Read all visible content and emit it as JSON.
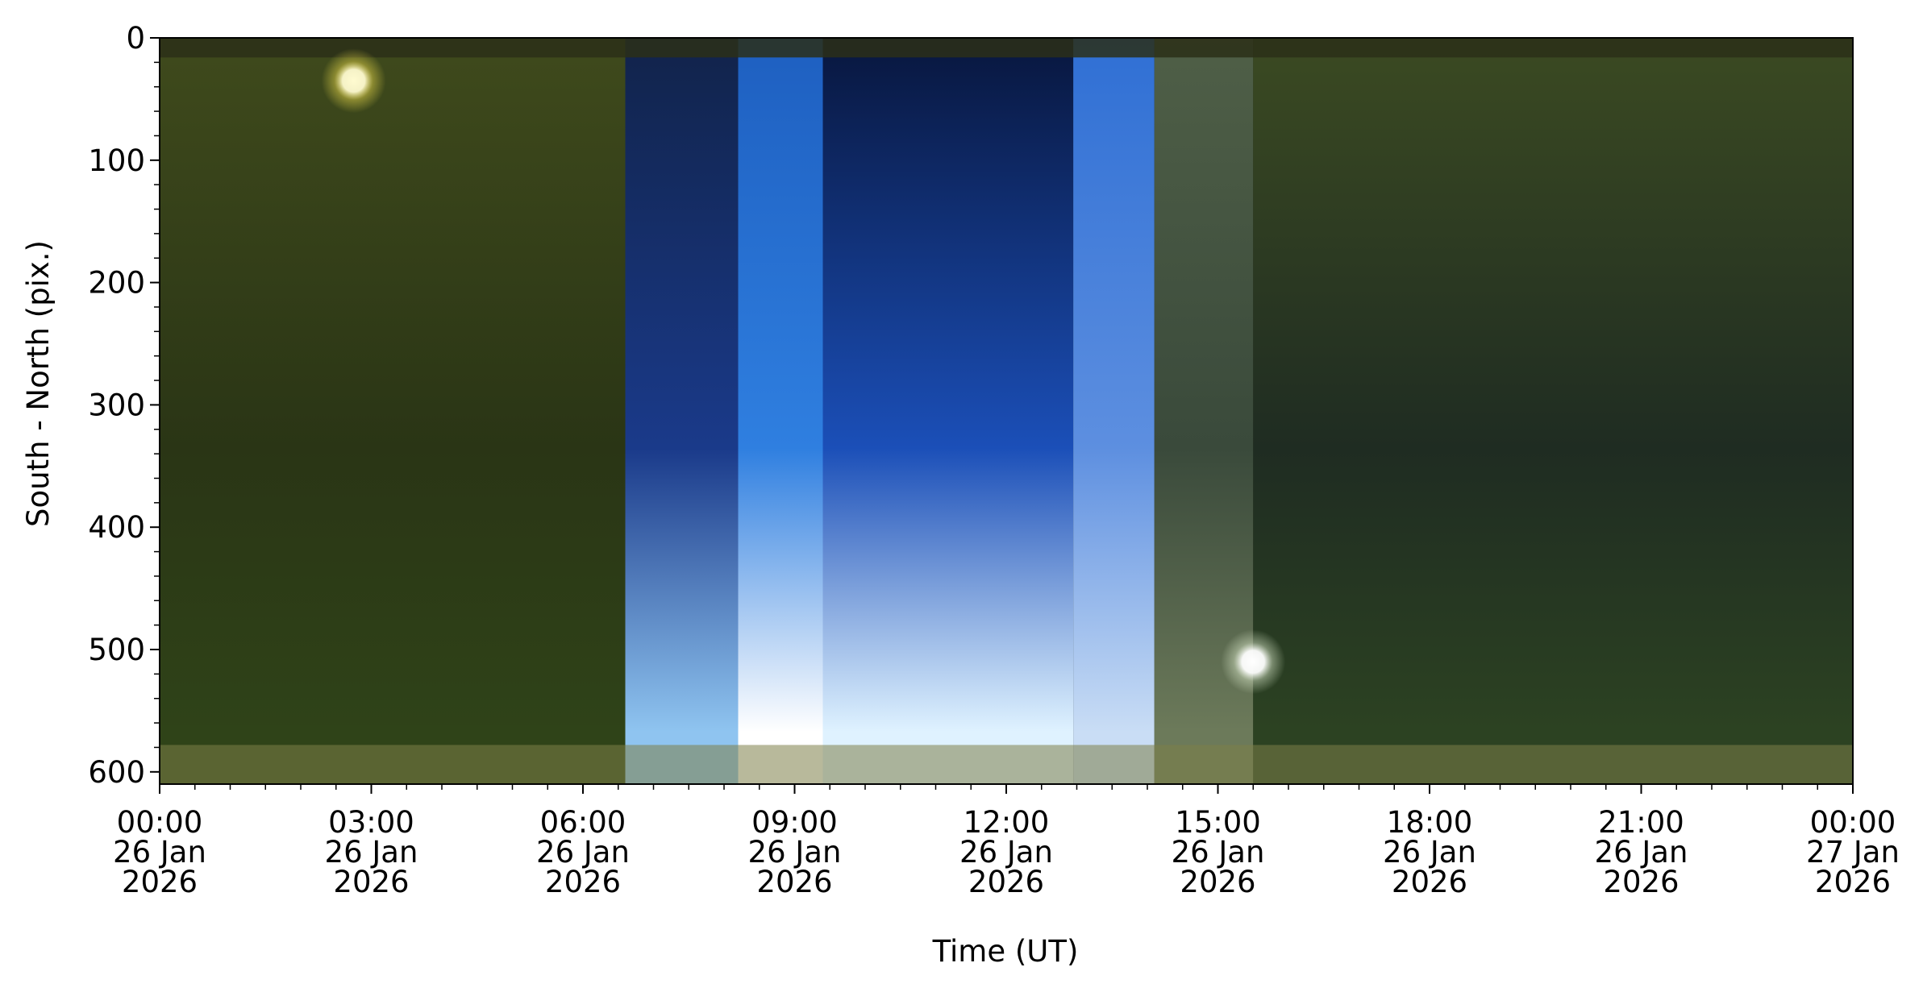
{
  "chart_data": {
    "type": "heatmap",
    "title": "",
    "xlabel": "Time (UT)",
    "ylabel": "South - North (pix.)",
    "x_range_hours": [
      0,
      24
    ],
    "ylim": [
      0,
      610
    ],
    "y_axis_inverted": true,
    "grid": false,
    "legend": "none",
    "x_ticks": [
      {
        "hours": 0,
        "time": "00:00",
        "date": "26 Jan",
        "year": "2026"
      },
      {
        "hours": 3,
        "time": "03:00",
        "date": "26 Jan",
        "year": "2026"
      },
      {
        "hours": 6,
        "time": "06:00",
        "date": "26 Jan",
        "year": "2026"
      },
      {
        "hours": 9,
        "time": "09:00",
        "date": "26 Jan",
        "year": "2026"
      },
      {
        "hours": 12,
        "time": "12:00",
        "date": "26 Jan",
        "year": "2026"
      },
      {
        "hours": 15,
        "time": "15:00",
        "date": "26 Jan",
        "year": "2026"
      },
      {
        "hours": 18,
        "time": "18:00",
        "date": "26 Jan",
        "year": "2026"
      },
      {
        "hours": 21,
        "time": "21:00",
        "date": "26 Jan",
        "year": "2026"
      },
      {
        "hours": 24,
        "time": "00:00",
        "date": "27 Jan",
        "year": "2026"
      }
    ],
    "y_ticks": [
      0,
      100,
      200,
      300,
      400,
      500,
      600
    ],
    "x_minor_step_hours": 0.5,
    "y_minor_step": 20,
    "segments": [
      {
        "start": 0.0,
        "end": 6.6,
        "top": "#3f4a1c",
        "mid": "#2a3515",
        "bottom": "#2f4318"
      },
      {
        "start": 6.6,
        "end": 8.2,
        "top": "#11234a",
        "mid": "#1a3a8a",
        "bottom": "#8fc4f0"
      },
      {
        "start": 8.2,
        "end": 9.4,
        "top": "#1e5fc0",
        "mid": "#2f7fe0",
        "bottom": "#ffffff"
      },
      {
        "start": 9.4,
        "end": 12.95,
        "top": "#08163d",
        "mid": "#1b4fb8",
        "bottom": "#dff2ff"
      },
      {
        "start": 12.95,
        "end": 14.1,
        "top": "#2f6fd4",
        "mid": "#5d8fe0",
        "bottom": "#c9ddf5"
      },
      {
        "start": 14.1,
        "end": 15.5,
        "top": "#4f5f47",
        "mid": "#3a4a3b",
        "bottom": "#6c7a5a"
      },
      {
        "start": 15.5,
        "end": 24.0,
        "top": "#3b4a22",
        "mid": "#1f2c22",
        "bottom": "#2c4222"
      }
    ],
    "bright_sources": [
      {
        "hours": 2.75,
        "y": 35,
        "color": "#fffbd0",
        "glow": "#e8d84a"
      },
      {
        "hours": 15.5,
        "y": 510,
        "color": "#ffffff",
        "glow": "#d8e6c8"
      }
    ],
    "horizon_band_y": [
      578,
      610
    ],
    "horizon_band_color": "#7e8048",
    "top_band_y": [
      0,
      16
    ],
    "top_band_color": "#2c2f17"
  }
}
